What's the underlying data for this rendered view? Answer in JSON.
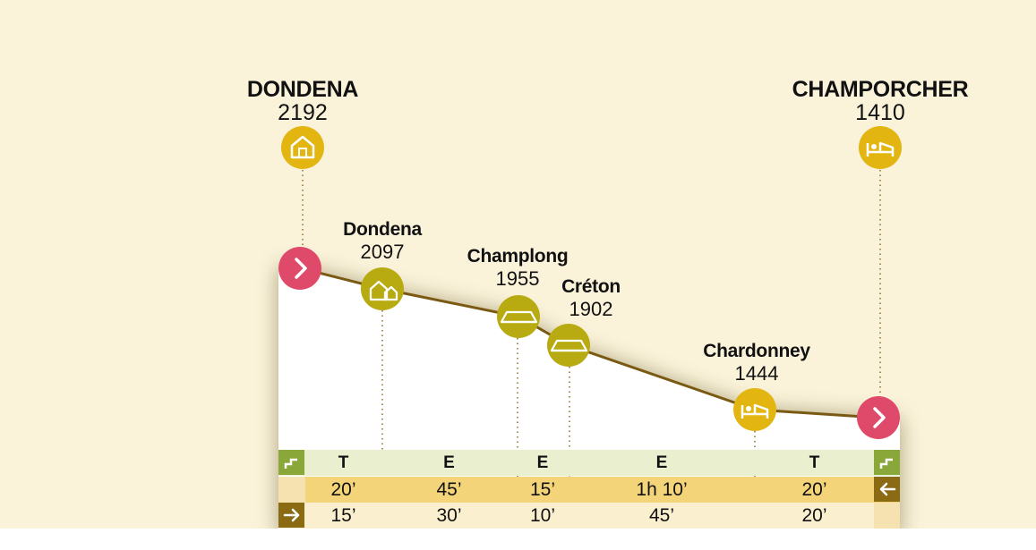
{
  "colors": {
    "background": "#faf3da",
    "profile_line": "#7a5a12",
    "hut_marker": "#e2b511",
    "village_marker": "#b8ab12",
    "arrow_marker": "#e04a6a",
    "row_difficulty": "#eaf0cf",
    "row_time_forward": "#f3d479",
    "row_time_back": "#faefcf"
  },
  "endpoints": [
    {
      "name": "DONDENA",
      "altitude": "2192",
      "icon": "hut-icon"
    },
    {
      "name": "CHAMPORCHER",
      "altitude": "1410",
      "icon": "bed-icon"
    }
  ],
  "waypoints": [
    {
      "name": "Dondena",
      "altitude": "2097",
      "icon": "village-icon"
    },
    {
      "name": "Champlong",
      "altitude": "1955",
      "icon": "alpine-hut-icon"
    },
    {
      "name": "Créton",
      "altitude": "1902",
      "icon": "alpine-hut-icon"
    },
    {
      "name": "Chardonney",
      "altitude": "1444",
      "icon": "bed-icon"
    }
  ],
  "segments": {
    "difficulty": [
      "T",
      "E",
      "E",
      "E",
      "T"
    ],
    "time_forward": [
      "20’",
      "45’",
      "15’",
      "1h 10’",
      "20’"
    ],
    "time_back": [
      "15’",
      "30’",
      "10’",
      "45’",
      "20’"
    ]
  },
  "row_icons": {
    "difficulty_left": "steps-icon",
    "difficulty_right": "steps-icon",
    "forward": "arrow-left-icon",
    "back": "arrow-right-icon"
  }
}
